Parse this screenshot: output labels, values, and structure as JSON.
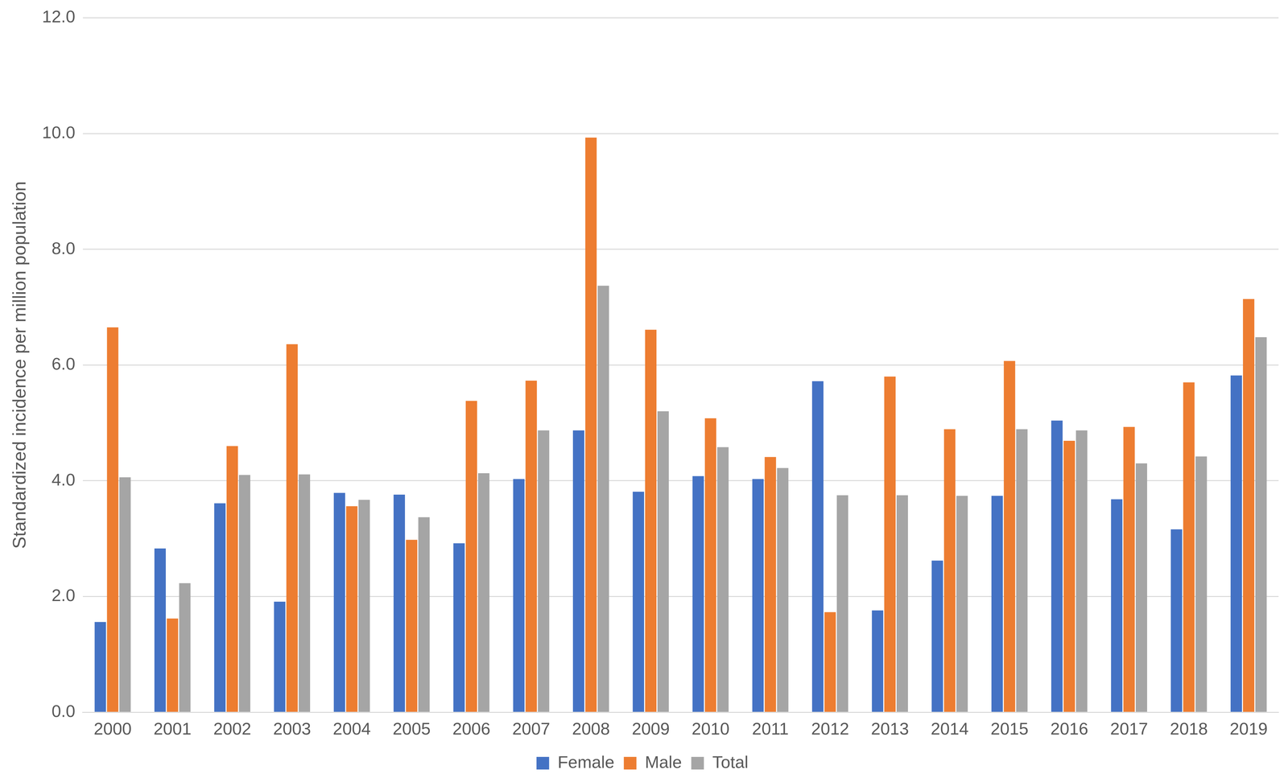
{
  "chart_data": {
    "type": "bar",
    "y_label": "Standardized incidence per million population",
    "categories": [
      "2000",
      "2001",
      "2002",
      "2003",
      "2004",
      "2005",
      "2006",
      "2007",
      "2008",
      "2009",
      "2010",
      "2011",
      "2012",
      "2013",
      "2014",
      "2015",
      "2016",
      "2017",
      "2018",
      "2019"
    ],
    "series": [
      {
        "name": "Female",
        "color": "#4472c4",
        "values": [
          1.56,
          2.83,
          3.61,
          1.91,
          3.79,
          3.76,
          2.92,
          4.03,
          4.87,
          3.81,
          4.08,
          4.03,
          5.72,
          1.76,
          2.62,
          3.74,
          5.04,
          3.68,
          3.16,
          5.82
        ]
      },
      {
        "name": "Male",
        "color": "#ed7d31",
        "values": [
          6.65,
          1.62,
          4.6,
          6.36,
          3.56,
          2.98,
          5.38,
          5.73,
          9.93,
          6.61,
          5.08,
          4.41,
          1.73,
          5.8,
          4.89,
          6.07,
          4.69,
          4.93,
          5.7,
          7.14
        ]
      },
      {
        "name": "Total",
        "color": "#a5a5a5",
        "values": [
          4.06,
          2.23,
          4.1,
          4.11,
          3.67,
          3.37,
          4.13,
          4.87,
          7.37,
          5.2,
          4.58,
          4.22,
          3.75,
          3.75,
          3.74,
          4.89,
          4.87,
          4.3,
          4.42,
          6.48
        ]
      }
    ],
    "ylim": [
      0,
      12
    ],
    "yticks": [
      {
        "value": 0,
        "label": "0.0"
      },
      {
        "value": 2,
        "label": "2.0"
      },
      {
        "value": 4,
        "label": "4.0"
      },
      {
        "value": 6,
        "label": "6.0"
      },
      {
        "value": 8,
        "label": "8.0"
      },
      {
        "value": 10,
        "label": "10.0"
      },
      {
        "value": 12,
        "label": "12.0"
      }
    ],
    "grid": true,
    "legend": "bottom"
  }
}
